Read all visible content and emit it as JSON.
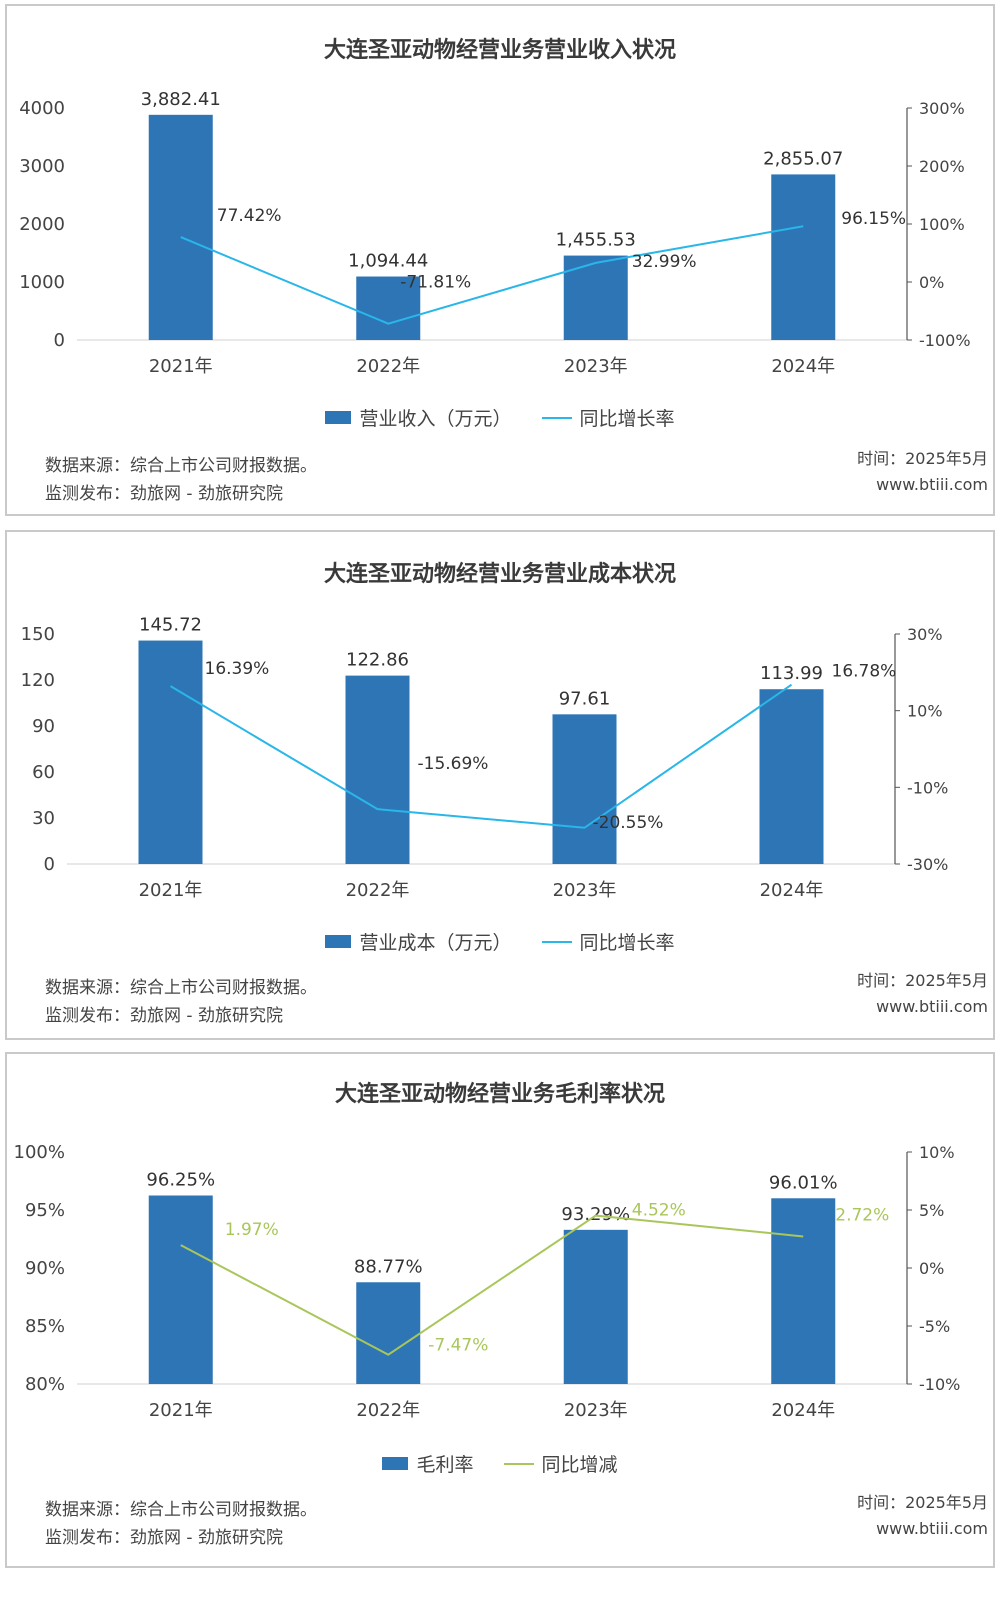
{
  "footer": {
    "source": "数据来源：综合上市公司财报数据。",
    "publisher": "监测发布：劲旅网 - 劲旅研究院",
    "time": "时间：2025年5月",
    "site": "www.btiii.com"
  },
  "colors": {
    "bar": "#2e75b6",
    "line_blue": "#29b6e8",
    "line_green": "#a9c65a",
    "axis": "#555555"
  },
  "chart_data": [
    {
      "type": "bar",
      "title": "大连圣亚动物经营业务营业收入状况",
      "categories": [
        "2021年",
        "2022年",
        "2023年",
        "2024年"
      ],
      "bar_labels": [
        "3,882.41",
        "1,094.44",
        "1,455.53",
        "2,855.07"
      ],
      "line_labels": [
        "77.42%",
        "-71.81%",
        "32.99%",
        "96.15%"
      ],
      "series": [
        {
          "name": "营业收入（万元）",
          "type": "bar",
          "axis": "left",
          "values": [
            3882.41,
            1094.44,
            1455.53,
            2855.07
          ]
        },
        {
          "name": "同比增长率",
          "type": "line",
          "axis": "right",
          "values": [
            77.42,
            -71.81,
            32.99,
            96.15
          ]
        }
      ],
      "left_ticks": [
        "0",
        "1000",
        "2000",
        "3000",
        "4000"
      ],
      "right_ticks": [
        "-100%",
        "0%",
        "100%",
        "200%",
        "300%"
      ],
      "ylim": [
        0,
        4000
      ],
      "y2lim": [
        -100,
        300
      ]
    },
    {
      "type": "bar",
      "title": "大连圣亚动物经营业务营业成本状况",
      "categories": [
        "2021年",
        "2022年",
        "2023年",
        "2024年"
      ],
      "bar_labels": [
        "145.72",
        "122.86",
        "97.61",
        "113.99"
      ],
      "line_labels": [
        "16.39%",
        "-15.69%",
        "-20.55%",
        "16.78%"
      ],
      "series": [
        {
          "name": "营业成本（万元）",
          "type": "bar",
          "axis": "left",
          "values": [
            145.72,
            122.86,
            97.61,
            113.99
          ]
        },
        {
          "name": "同比增长率",
          "type": "line",
          "axis": "right",
          "values": [
            16.39,
            -15.69,
            -20.55,
            16.78
          ]
        }
      ],
      "left_ticks": [
        "0",
        "30",
        "60",
        "90",
        "120",
        "150"
      ],
      "right_ticks": [
        "-30%",
        "-10%",
        "10%",
        "30%"
      ],
      "ylim": [
        0,
        150
      ],
      "y2lim": [
        -30,
        30
      ]
    },
    {
      "type": "bar",
      "title": "大连圣亚动物经营业务毛利率状况",
      "categories": [
        "2021年",
        "2022年",
        "2023年",
        "2024年"
      ],
      "bar_labels": [
        "96.25%",
        "88.77%",
        "93.29%",
        "96.01%"
      ],
      "line_labels": [
        "1.97%",
        "-7.47%",
        "4.52%",
        "2.72%"
      ],
      "series": [
        {
          "name": "毛利率",
          "type": "bar",
          "axis": "left",
          "values": [
            96.25,
            88.77,
            93.29,
            96.01
          ]
        },
        {
          "name": "同比增减",
          "type": "line",
          "axis": "right",
          "values": [
            1.97,
            -7.47,
            4.52,
            2.72
          ]
        }
      ],
      "left_ticks": [
        "80%",
        "85%",
        "90%",
        "95%",
        "100%"
      ],
      "right_ticks": [
        "-10%",
        "-5%",
        "0%",
        "5%",
        "10%"
      ],
      "ylim": [
        80,
        100
      ],
      "y2lim": [
        -10,
        10
      ]
    }
  ]
}
